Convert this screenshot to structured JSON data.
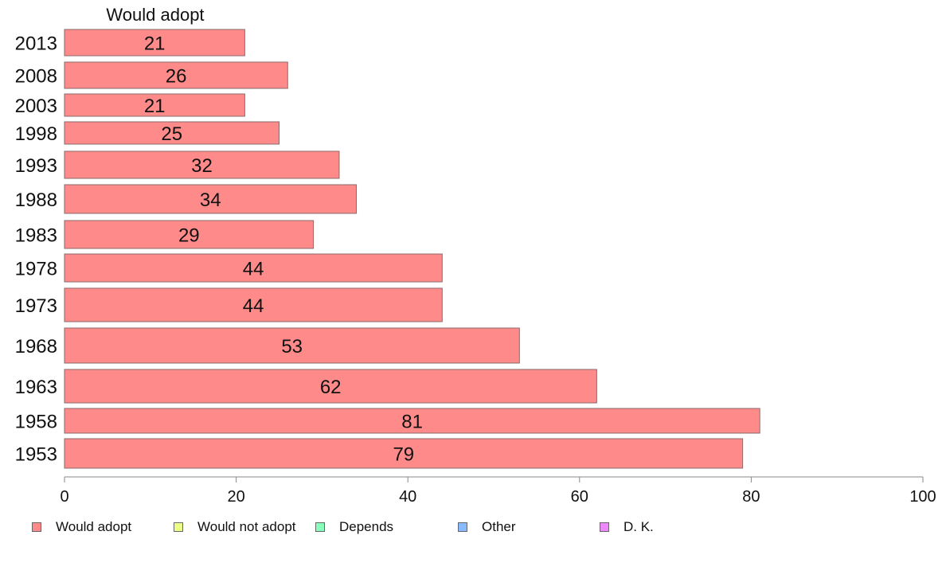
{
  "chart_data": {
    "type": "bar",
    "orientation": "horizontal",
    "title": "Would adopt",
    "categories": [
      "2013",
      "2008",
      "2003",
      "1998",
      "1993",
      "1988",
      "1983",
      "1978",
      "1973",
      "1968",
      "1963",
      "1958",
      "1953"
    ],
    "series": [
      {
        "name": "Would adopt",
        "color": "#ff8a8a",
        "values": [
          21,
          26,
          21,
          25,
          32,
          34,
          29,
          44,
          44,
          53,
          62,
          81,
          79
        ]
      }
    ],
    "data_labels": [
      "21",
      "26",
      "21",
      "25",
      "32",
      "34",
      "29",
      "44",
      "44",
      "53",
      "62",
      "81",
      "79"
    ],
    "xlim": [
      0,
      100
    ],
    "x_ticks": [
      "0",
      "20",
      "40",
      "60",
      "80",
      "100"
    ],
    "grid": false,
    "legend_position": "bottom",
    "legend": [
      {
        "label": "Would adopt",
        "color": "#ff8a8a"
      },
      {
        "label": "Would not adopt",
        "color": "#eeff88"
      },
      {
        "label": "Depends",
        "color": "#88ffbb"
      },
      {
        "label": "Other",
        "color": "#88bbff"
      },
      {
        "label": "D. K.",
        "color": "#ee88ff"
      }
    ]
  }
}
